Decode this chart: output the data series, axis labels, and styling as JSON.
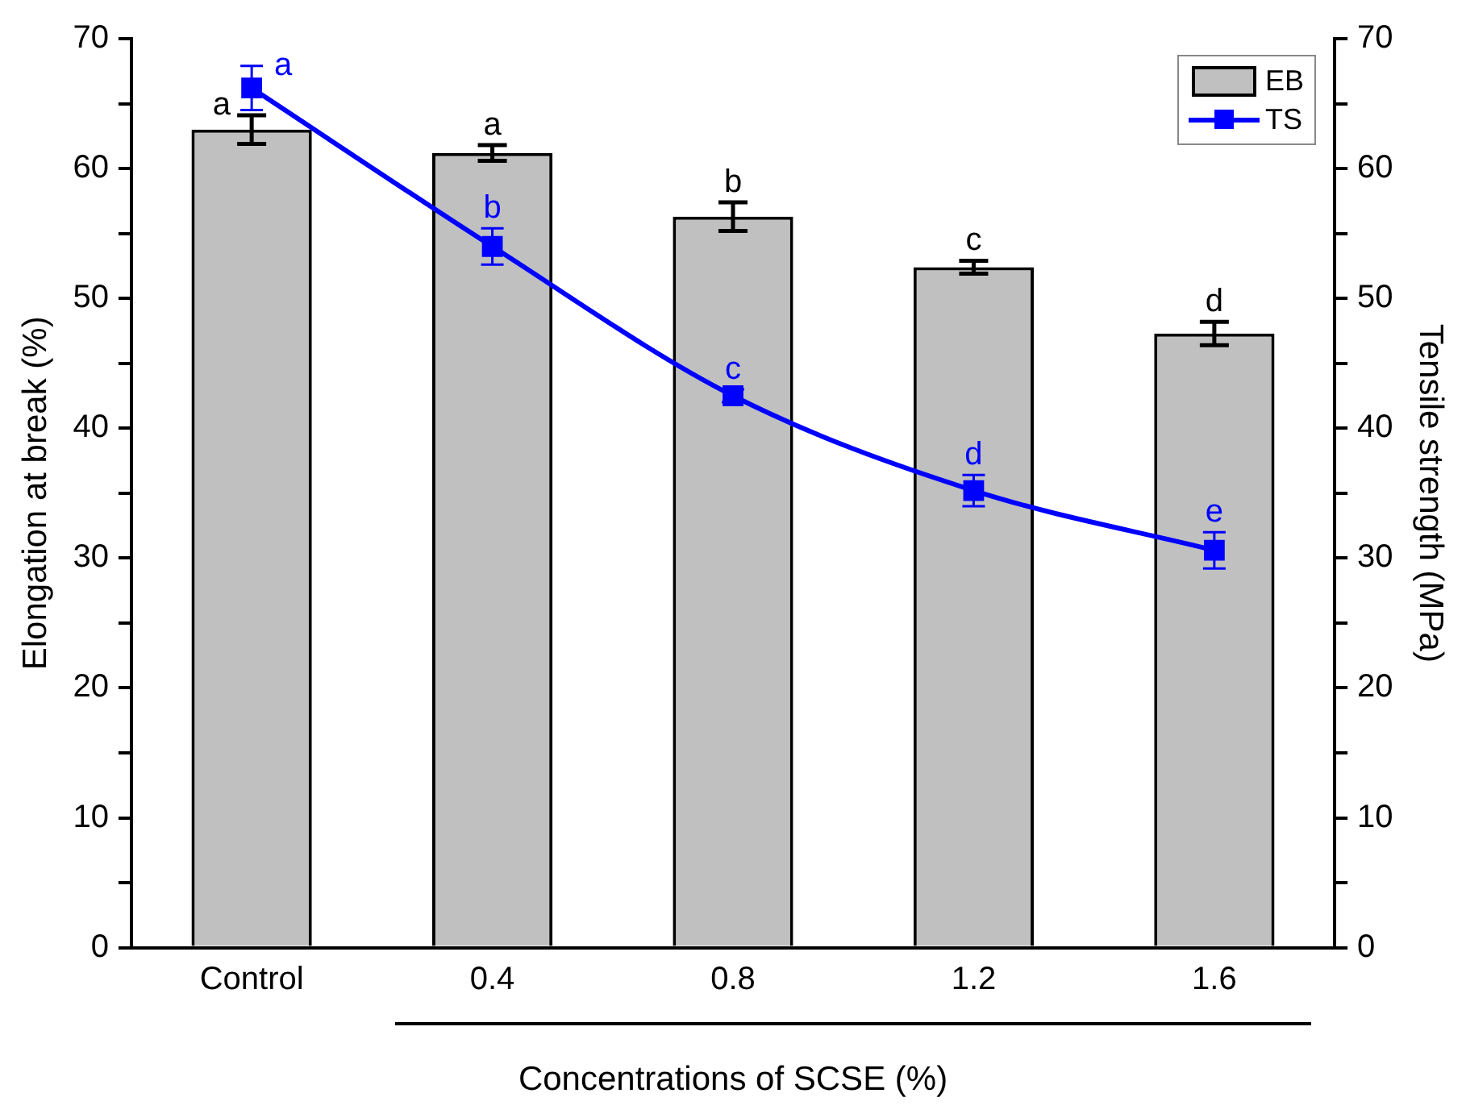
{
  "chart_data": {
    "type": "bar",
    "xlabel": "Concentrations of SCSE (%)",
    "ylabel": "Elongation at break (%)",
    "y2label": "Tensile strength (MPa)",
    "categories": [
      "Control",
      "0.4",
      "0.8",
      "1.2",
      "1.6"
    ],
    "series": [
      {
        "name": "EB",
        "color": "#c0c0c0",
        "values": [
          63.0,
          61.2,
          56.3,
          52.4,
          47.3
        ],
        "errors": [
          1.1,
          0.6,
          1.1,
          0.5,
          0.9
        ],
        "value_labels": [
          "a",
          "a",
          "b",
          "c",
          "d"
        ]
      },
      {
        "name": "TS",
        "type": "line",
        "axis": "y2",
        "color": "#0000ff",
        "marker": "square",
        "values": [
          66.2,
          54.0,
          42.5,
          35.2,
          30.6
        ],
        "errors": [
          1.7,
          1.4,
          0.5,
          1.2,
          1.4
        ],
        "value_labels": [
          "a",
          "b",
          "c",
          "d",
          "e"
        ]
      }
    ],
    "ylim": [
      0,
      70
    ],
    "yticks": [
      0,
      {
        "value": 5,
        "label": null
      },
      10,
      {
        "value": 15,
        "label": null
      },
      20,
      {
        "value": 25,
        "label": null
      },
      30,
      {
        "value": 35,
        "label": null
      },
      40,
      {
        "value": 45,
        "label": null
      },
      50,
      {
        "value": 55,
        "label": null
      },
      60,
      {
        "value": 65,
        "label": null
      },
      70
    ],
    "y2lim": [
      0,
      70
    ],
    "y2ticks": [
      0,
      {
        "value": 5,
        "label": null
      },
      10,
      {
        "value": 15,
        "label": null
      },
      20,
      {
        "value": 25,
        "label": null
      },
      30,
      {
        "value": 35,
        "label": null
      },
      40,
      {
        "value": 45,
        "label": null
      },
      50,
      {
        "value": 55,
        "label": null
      },
      60,
      {
        "value": 65,
        "label": null
      },
      70
    ],
    "grid": false,
    "legend": "top right"
  }
}
